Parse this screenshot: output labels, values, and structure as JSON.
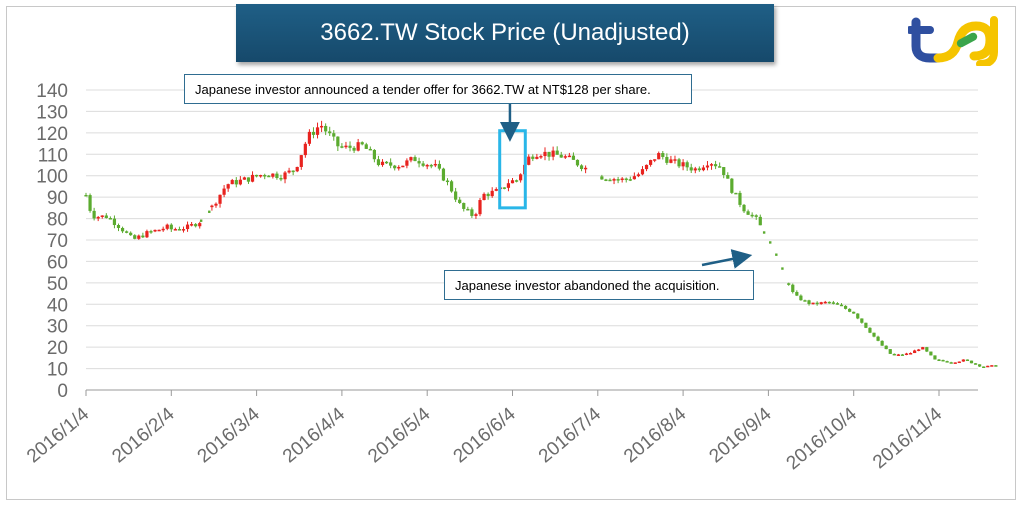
{
  "chart_data": {
    "type": "candlestick",
    "title": "3662.TW Stock Price (Unadjusted)",
    "ylim": [
      0,
      140
    ],
    "yticks": [
      0,
      10,
      20,
      30,
      40,
      50,
      60,
      70,
      80,
      90,
      100,
      110,
      120,
      130,
      140
    ],
    "xticks": [
      "2016/1/4",
      "2016/2/4",
      "2016/3/4",
      "2016/4/4",
      "2016/5/4",
      "2016/6/4",
      "2016/7/4",
      "2016/8/4",
      "2016/9/4",
      "2016/10/4",
      "2016/11/4"
    ],
    "grid": true,
    "up_color": "#e8231f",
    "down_color": "#5bab2f",
    "series_anchors": [
      {
        "x": 0,
        "y": 91
      },
      {
        "x": 0.05,
        "y": 84
      },
      {
        "x": 0.1,
        "y": 81
      },
      {
        "x": 0.25,
        "y": 81
      },
      {
        "x": 0.4,
        "y": 76
      },
      {
        "x": 0.55,
        "y": 70
      },
      {
        "x": 0.7,
        "y": 73
      },
      {
        "x": 0.95,
        "y": 76
      },
      {
        "x": 1.0,
        "y": 75
      },
      {
        "x": 1.2,
        "y": 76
      },
      {
        "x": 1.4,
        "y": 80
      },
      {
        "x": 1.5,
        "y": 87
      },
      {
        "x": 1.65,
        "y": 96
      },
      {
        "x": 1.85,
        "y": 98
      },
      {
        "x": 2.1,
        "y": 101
      },
      {
        "x": 2.3,
        "y": 100
      },
      {
        "x": 2.45,
        "y": 103
      },
      {
        "x": 2.6,
        "y": 118
      },
      {
        "x": 2.75,
        "y": 124
      },
      {
        "x": 2.95,
        "y": 114
      },
      {
        "x": 3.05,
        "y": 113
      },
      {
        "x": 3.25,
        "y": 114
      },
      {
        "x": 3.45,
        "y": 105
      },
      {
        "x": 3.7,
        "y": 105
      },
      {
        "x": 3.85,
        "y": 108
      },
      {
        "x": 4.1,
        "y": 104
      },
      {
        "x": 4.25,
        "y": 96
      },
      {
        "x": 4.4,
        "y": 85
      },
      {
        "x": 4.55,
        "y": 81
      },
      {
        "x": 4.65,
        "y": 91
      },
      {
        "x": 4.85,
        "y": 93
      },
      {
        "x": 4.95,
        "y": 97
      },
      {
        "x": 5.05,
        "y": 98
      },
      {
        "x": 5.2,
        "y": 109
      },
      {
        "x": 5.3,
        "y": 111
      },
      {
        "x": 5.45,
        "y": 110
      },
      {
        "x": 5.6,
        "y": 109
      },
      {
        "x": 5.8,
        "y": 105
      },
      {
        "x": 6.0,
        "y": 100
      },
      {
        "x": 6.3,
        "y": 98
      },
      {
        "x": 6.5,
        "y": 101
      },
      {
        "x": 6.7,
        "y": 110
      },
      {
        "x": 6.9,
        "y": 106
      },
      {
        "x": 7.15,
        "y": 103
      },
      {
        "x": 7.3,
        "y": 107
      },
      {
        "x": 7.45,
        "y": 104
      },
      {
        "x": 7.55,
        "y": 95
      },
      {
        "x": 7.7,
        "y": 85
      },
      {
        "x": 7.85,
        "y": 80
      },
      {
        "x": 8.05,
        "y": 67
      },
      {
        "x": 8.15,
        "y": 58
      },
      {
        "x": 8.3,
        "y": 44
      },
      {
        "x": 8.5,
        "y": 40
      },
      {
        "x": 8.7,
        "y": 41
      },
      {
        "x": 8.85,
        "y": 39
      },
      {
        "x": 9.0,
        "y": 36
      },
      {
        "x": 9.15,
        "y": 29
      },
      {
        "x": 9.3,
        "y": 22
      },
      {
        "x": 9.45,
        "y": 16
      },
      {
        "x": 9.65,
        "y": 17
      },
      {
        "x": 9.8,
        "y": 20
      },
      {
        "x": 9.95,
        "y": 14
      },
      {
        "x": 10.15,
        "y": 13
      },
      {
        "x": 10.3,
        "y": 14
      },
      {
        "x": 10.5,
        "y": 11
      },
      {
        "x": 10.6,
        "y": 11
      },
      {
        "x": 10.7,
        "y": 12
      }
    ],
    "gaps": [
      [
        1.35,
        1.45
      ],
      [
        5.9,
        6.0
      ],
      [
        7.95,
        8.2
      ]
    ],
    "highlight_range": {
      "x_start": 4.85,
      "x_end": 5.15,
      "y_low": 85,
      "y_high": 121
    },
    "annotations": [
      {
        "text": "Japanese investor announced a tender offer for 3662.TW at NT$128 per share.",
        "target_x": 4.97,
        "target_y": 120
      },
      {
        "text": "Japanese investor abandoned the acquisition.",
        "target_x": 7.8,
        "target_y": 63
      }
    ]
  },
  "logo": {
    "name": "tej-logo",
    "colors": [
      "#2f4fa0",
      "#f5c400",
      "#3aa54b"
    ]
  }
}
